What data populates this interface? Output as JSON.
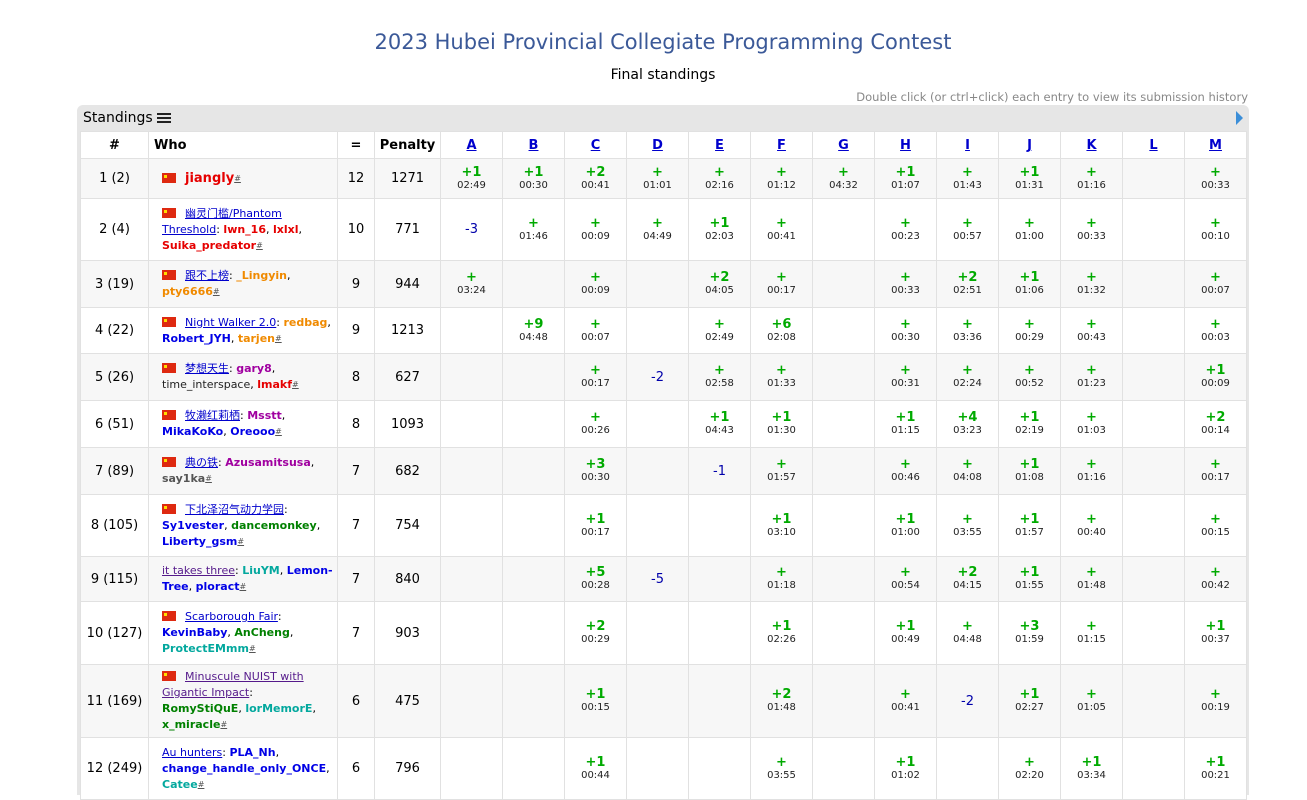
{
  "title": "2023 Hubei Provincial Collegiate Programming Contest",
  "subtitle": "Final standings",
  "hint": "Double click (or ctrl+click) each entry to view its submission history",
  "panel_title": "Standings",
  "headers": {
    "rank": "#",
    "who": "Who",
    "solved": "=",
    "penalty": "Penalty"
  },
  "problems": [
    "A",
    "B",
    "C",
    "D",
    "E",
    "F",
    "G",
    "H",
    "I",
    "J",
    "K",
    "L",
    "M"
  ],
  "hash": "#",
  "rows": [
    {
      "rank": "1 (2)",
      "team": "jiangly",
      "first": true,
      "members": [],
      "solved": "12",
      "penalty": "1271",
      "cells": [
        [
          "+1",
          "02:49"
        ],
        [
          "+1",
          "00:30"
        ],
        [
          "+2",
          "00:41"
        ],
        [
          "+",
          "01:01"
        ],
        [
          "+",
          "02:16"
        ],
        [
          "+",
          "01:12"
        ],
        [
          "+",
          "04:32"
        ],
        [
          "+1",
          "01:07"
        ],
        [
          "+",
          "01:43"
        ],
        [
          "+1",
          "01:31"
        ],
        [
          "+",
          "01:16"
        ],
        null,
        [
          "+",
          "00:33"
        ]
      ]
    },
    {
      "rank": "2 (4)",
      "team": "幽灵门槛/Phantom Threshold",
      "members": [
        {
          "n": "lwn_16",
          "c": "red"
        },
        {
          "n": "lxlxl",
          "c": "red"
        },
        {
          "n": "Suika_predator",
          "c": "red"
        }
      ],
      "solved": "10",
      "penalty": "771",
      "cells": [
        [
          "-3",
          ""
        ],
        [
          "+",
          "01:46"
        ],
        [
          "+",
          "00:09"
        ],
        [
          "+",
          "04:49"
        ],
        [
          "+1",
          "02:03"
        ],
        [
          "+",
          "00:41"
        ],
        null,
        [
          "+",
          "00:23"
        ],
        [
          "+",
          "00:57"
        ],
        [
          "+",
          "01:00"
        ],
        [
          "+",
          "00:33"
        ],
        null,
        [
          "+",
          "00:10"
        ]
      ]
    },
    {
      "rank": "3 (19)",
      "team": "跟不上榜",
      "members": [
        {
          "n": "_Lingyin",
          "c": "orange"
        },
        {
          "n": "pty6666",
          "c": "orange"
        }
      ],
      "solved": "9",
      "penalty": "944",
      "cells": [
        [
          "+",
          "03:24"
        ],
        null,
        [
          "+",
          "00:09"
        ],
        null,
        [
          "+2",
          "04:05"
        ],
        [
          "+",
          "00:17"
        ],
        null,
        [
          "+",
          "00:33"
        ],
        [
          "+2",
          "02:51"
        ],
        [
          "+1",
          "01:06"
        ],
        [
          "+",
          "01:32"
        ],
        null,
        [
          "+",
          "00:07"
        ]
      ]
    },
    {
      "rank": "4 (22)",
      "team": "Night Walker 2.0",
      "members": [
        {
          "n": "redbag",
          "c": "orange"
        },
        {
          "n": "Robert_JYH",
          "c": "blue"
        },
        {
          "n": "tarjen",
          "c": "orange"
        }
      ],
      "solved": "9",
      "penalty": "1213",
      "cells": [
        null,
        [
          "+9",
          "04:48"
        ],
        [
          "+",
          "00:07"
        ],
        null,
        [
          "+",
          "02:49"
        ],
        [
          "+6",
          "02:08"
        ],
        null,
        [
          "+",
          "00:30"
        ],
        [
          "+",
          "03:36"
        ],
        [
          "+",
          "00:29"
        ],
        [
          "+",
          "00:43"
        ],
        null,
        [
          "+",
          "00:03"
        ]
      ]
    },
    {
      "rank": "5 (26)",
      "team": "梦想天生",
      "members": [
        {
          "n": "gary8",
          "c": "violet"
        },
        {
          "n": "time_interspace",
          "c": "black"
        },
        {
          "n": "lmakf",
          "c": "red"
        }
      ],
      "solved": "8",
      "penalty": "627",
      "cells": [
        null,
        null,
        [
          "+",
          "00:17"
        ],
        [
          "-2",
          ""
        ],
        [
          "+",
          "02:58"
        ],
        [
          "+",
          "01:33"
        ],
        null,
        [
          "+",
          "00:31"
        ],
        [
          "+",
          "02:24"
        ],
        [
          "+",
          "00:52"
        ],
        [
          "+",
          "01:23"
        ],
        null,
        [
          "+1",
          "00:09"
        ]
      ]
    },
    {
      "rank": "6 (51)",
      "team": "牧濑红莉栖",
      "members": [
        {
          "n": "Msstt",
          "c": "violet"
        },
        {
          "n": "MikaKoKo",
          "c": "blue"
        },
        {
          "n": "Oreooo",
          "c": "blue"
        }
      ],
      "solved": "8",
      "penalty": "1093",
      "cells": [
        null,
        null,
        [
          "+",
          "00:26"
        ],
        null,
        [
          "+1",
          "04:43"
        ],
        [
          "+1",
          "01:30"
        ],
        null,
        [
          "+1",
          "01:15"
        ],
        [
          "+4",
          "03:23"
        ],
        [
          "+1",
          "02:19"
        ],
        [
          "+",
          "01:03"
        ],
        null,
        [
          "+2",
          "00:14"
        ]
      ]
    },
    {
      "rank": "7 (89)",
      "team": "典の铁",
      "members": [
        {
          "n": "Azusamitsusa",
          "c": "violet"
        },
        {
          "n": "say1ka",
          "c": "gray"
        }
      ],
      "solved": "7",
      "penalty": "682",
      "cells": [
        null,
        null,
        [
          "+3",
          "00:30"
        ],
        null,
        [
          "-1",
          ""
        ],
        [
          "+",
          "01:57"
        ],
        null,
        [
          "+",
          "00:46"
        ],
        [
          "+",
          "04:08"
        ],
        [
          "+1",
          "01:08"
        ],
        [
          "+",
          "01:16"
        ],
        null,
        [
          "+",
          "00:17"
        ]
      ]
    },
    {
      "rank": "8 (105)",
      "team": "下北泽沼气动力学园",
      "members": [
        {
          "n": "Sy1vester",
          "c": "blue"
        },
        {
          "n": "dancemonkey",
          "c": "green"
        },
        {
          "n": "Liberty_gsm",
          "c": "blue"
        }
      ],
      "solved": "7",
      "penalty": "754",
      "cells": [
        null,
        null,
        [
          "+1",
          "00:17"
        ],
        null,
        null,
        [
          "+1",
          "03:10"
        ],
        null,
        [
          "+1",
          "01:00"
        ],
        [
          "+",
          "03:55"
        ],
        [
          "+1",
          "01:57"
        ],
        [
          "+",
          "00:40"
        ],
        null,
        [
          "+",
          "00:15"
        ]
      ]
    },
    {
      "rank": "9 (115)",
      "team": "it takes three",
      "noflag": true,
      "members": [
        {
          "n": "LiuYM",
          "c": "cyan"
        },
        {
          "n": "Lemon-Tree",
          "c": "blue"
        },
        {
          "n": "ploract",
          "c": "blue"
        }
      ],
      "solved": "7",
      "penalty": "840",
      "cells": [
        null,
        null,
        [
          "+5",
          "00:28"
        ],
        [
          "-5",
          ""
        ],
        null,
        [
          "+",
          "01:18"
        ],
        null,
        [
          "+",
          "00:54"
        ],
        [
          "+2",
          "04:15"
        ],
        [
          "+1",
          "01:55"
        ],
        [
          "+",
          "01:48"
        ],
        null,
        [
          "+",
          "00:42"
        ]
      ]
    },
    {
      "rank": "10 (127)",
      "team": "Scarborough Fair",
      "members": [
        {
          "n": "KevinBaby",
          "c": "blue"
        },
        {
          "n": "AnCheng",
          "c": "green"
        },
        {
          "n": "ProtectEMmm",
          "c": "cyan"
        }
      ],
      "solved": "7",
      "penalty": "903",
      "cells": [
        null,
        null,
        [
          "+2",
          "00:29"
        ],
        null,
        null,
        [
          "+1",
          "02:26"
        ],
        null,
        [
          "+1",
          "00:49"
        ],
        [
          "+",
          "04:48"
        ],
        [
          "+3",
          "01:59"
        ],
        [
          "+",
          "01:15"
        ],
        null,
        [
          "+1",
          "00:37"
        ]
      ]
    },
    {
      "rank": "11 (169)",
      "team": "Minuscule NUIST with Gigantic Impact",
      "members": [
        {
          "n": "RomyStiQuE",
          "c": "green"
        },
        {
          "n": "lorMemorE",
          "c": "cyan"
        },
        {
          "n": "x_miracle",
          "c": "green"
        }
      ],
      "solved": "6",
      "penalty": "475",
      "cells": [
        null,
        null,
        [
          "+1",
          "00:15"
        ],
        null,
        null,
        [
          "+2",
          "01:48"
        ],
        null,
        [
          "+",
          "00:41"
        ],
        [
          "-2",
          ""
        ],
        [
          "+1",
          "02:27"
        ],
        [
          "+",
          "01:05"
        ],
        null,
        [
          "+",
          "00:19"
        ]
      ]
    },
    {
      "rank": "12 (249)",
      "team": "Au hunters",
      "noflag": true,
      "members": [
        {
          "n": "PLA_Nh",
          "c": "blue"
        },
        {
          "n": "change_handle_only_ONCE",
          "c": "blue"
        },
        {
          "n": "Catee",
          "c": "cyan"
        }
      ],
      "solved": "6",
      "penalty": "796",
      "cells": [
        null,
        null,
        [
          "+1",
          "00:44"
        ],
        null,
        null,
        [
          "+",
          "03:55"
        ],
        null,
        [
          "+1",
          "01:02"
        ],
        null,
        [
          "+",
          "02:20"
        ],
        [
          "+1",
          "03:34"
        ],
        null,
        [
          "+1",
          "00:21"
        ]
      ]
    }
  ]
}
